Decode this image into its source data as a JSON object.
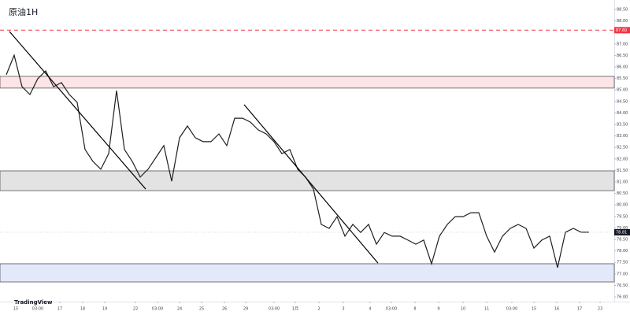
{
  "chart_data": {
    "type": "line",
    "title": "原油1H",
    "watermark": "TradingView",
    "color": "#1e1e1e",
    "x": [
      0,
      1,
      2,
      3,
      4,
      5,
      6,
      7,
      8,
      9,
      10,
      11,
      12,
      13,
      14,
      15,
      16,
      17,
      18,
      19,
      20,
      21,
      22,
      23,
      24,
      25,
      26,
      27,
      28,
      29,
      30,
      31,
      32,
      33,
      34,
      35,
      36,
      37,
      38,
      39,
      40,
      41,
      42,
      43,
      44,
      45,
      46,
      47,
      48,
      49,
      50,
      51,
      52,
      53,
      54,
      55,
      56,
      57,
      58,
      59,
      60,
      61,
      62,
      63,
      64,
      65,
      66,
      67,
      68,
      69,
      70,
      71,
      72,
      73,
      74
    ],
    "values": [
      85.66,
      86.51,
      85.14,
      84.8,
      85.49,
      85.83,
      85.14,
      85.32,
      84.8,
      84.46,
      82.41,
      81.89,
      81.55,
      82.23,
      84.97,
      82.41,
      81.89,
      81.21,
      81.55,
      82.06,
      82.58,
      81.03,
      82.92,
      83.43,
      82.92,
      82.75,
      82.75,
      83.09,
      82.58,
      83.77,
      83.77,
      83.6,
      83.26,
      83.09,
      82.75,
      82.23,
      82.41,
      81.55,
      81.21,
      80.69,
      79.15,
      78.98,
      79.49,
      78.64,
      79.15,
      78.8,
      79.15,
      78.29,
      78.8,
      78.64,
      78.64,
      78.47,
      78.29,
      78.47,
      77.44,
      78.64,
      79.15,
      79.49,
      79.49,
      79.66,
      79.66,
      78.64,
      77.95,
      78.64,
      78.98,
      79.15,
      78.98,
      78.12,
      78.47,
      78.64,
      77.27,
      78.81,
      78.98,
      78.81,
      78.81
    ],
    "xlim": [
      -0.8,
      77.2
    ],
    "ylim": [
      76,
      88.5
    ],
    "xticks": [
      {
        "value": 1.2,
        "label": "15"
      },
      {
        "value": 4,
        "label": "03:00"
      },
      {
        "value": 6.8,
        "label": "17"
      },
      {
        "value": 9.7,
        "label": "18"
      },
      {
        "value": 12.5,
        "label": "19"
      },
      {
        "value": 16.4,
        "label": "22"
      },
      {
        "value": 19.2,
        "label": "03:00"
      },
      {
        "value": 22,
        "label": "24"
      },
      {
        "value": 24.8,
        "label": "25"
      },
      {
        "value": 27.7,
        "label": "26"
      },
      {
        "value": 30.4,
        "label": "29"
      },
      {
        "value": 34,
        "label": "03:00"
      },
      {
        "value": 36.7,
        "label": "1月"
      },
      {
        "value": 39.7,
        "label": "2"
      },
      {
        "value": 42.8,
        "label": "3"
      },
      {
        "value": 46.2,
        "label": "4"
      },
      {
        "value": 48.9,
        "label": "03:00"
      },
      {
        "value": 51.9,
        "label": "8"
      },
      {
        "value": 54.9,
        "label": "9"
      },
      {
        "value": 58,
        "label": "10"
      },
      {
        "value": 61,
        "label": "11"
      },
      {
        "value": 64.2,
        "label": "03:00"
      },
      {
        "value": 67,
        "label": "15"
      },
      {
        "value": 69.9,
        "label": "16"
      },
      {
        "value": 72.8,
        "label": "17"
      },
      {
        "value": 75.4,
        "label": "23"
      }
    ],
    "yticks": [
      {
        "value": 76,
        "label": "76.00"
      },
      {
        "value": 76.5,
        "label": "76.50"
      },
      {
        "value": 77,
        "label": "77.00"
      },
      {
        "value": 77.5,
        "label": "77.50"
      },
      {
        "value": 78,
        "label": "78.00"
      },
      {
        "value": 78.5,
        "label": "78.50"
      },
      {
        "value": 79,
        "label": "79.00"
      },
      {
        "value": 79.5,
        "label": "79.50"
      },
      {
        "value": 80,
        "label": "80.00"
      },
      {
        "value": 80.5,
        "label": "80.50"
      },
      {
        "value": 81,
        "label": "81.00"
      },
      {
        "value": 81.5,
        "label": "81.50"
      },
      {
        "value": 82,
        "label": "82.00"
      },
      {
        "value": 82.5,
        "label": "82.50"
      },
      {
        "value": 83,
        "label": "83.00"
      },
      {
        "value": 83.5,
        "label": "83.50"
      },
      {
        "value": 84,
        "label": "84.00"
      },
      {
        "value": 84.5,
        "label": "84.50"
      },
      {
        "value": 85,
        "label": "85.00"
      },
      {
        "value": 85.5,
        "label": "85.50"
      },
      {
        "value": 86,
        "label": "86.00"
      },
      {
        "value": 86.5,
        "label": "86.50"
      },
      {
        "value": 87,
        "label": "87.00"
      },
      {
        "value": 87.5,
        "label": "87.50"
      },
      {
        "value": 88,
        "label": "88.00"
      },
      {
        "value": 88.5,
        "label": "88.50"
      }
    ],
    "zones": [
      {
        "ymin": 85.08,
        "ymax": 85.59,
        "color": "#fde4e6"
      },
      {
        "ymin": 80.62,
        "ymax": 81.48,
        "color": "#e3e3e3"
      },
      {
        "ymin": 76.65,
        "ymax": 77.44,
        "color": "#e3e8fb"
      }
    ],
    "trend_lines": [
      {
        "x": [
          0.4,
          17.7
        ],
        "y": [
          87.54,
          80.69
        ]
      },
      {
        "x": [
          30.2,
          47.2
        ],
        "y": [
          84.36,
          77.47
        ]
      }
    ],
    "ref_line": {
      "value": 87.6,
      "label": "87.60",
      "color": "#f23645"
    },
    "last_price": {
      "value": 78.81,
      "label": "78.81",
      "color": "#131722"
    }
  }
}
